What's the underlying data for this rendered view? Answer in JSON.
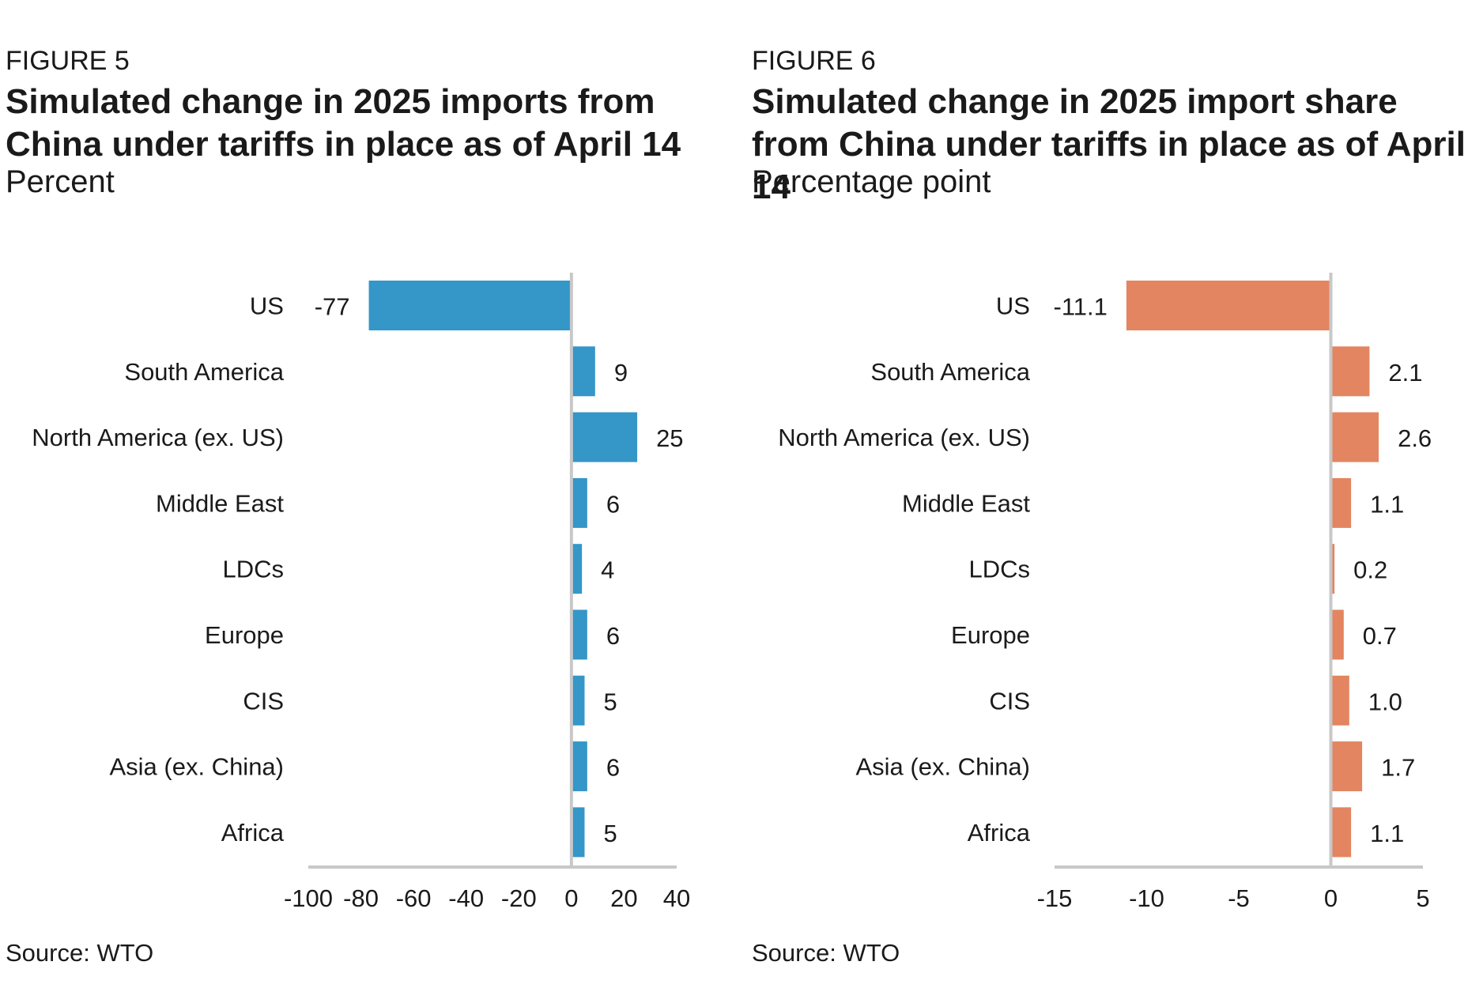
{
  "figures": [
    {
      "label": "FIGURE 5",
      "title": "Simulated change in 2025 imports from China under tariffs in place as of April 14",
      "unit": "Percent",
      "source": "Source: WTO"
    },
    {
      "label": "FIGURE 6",
      "title": "Simulated change in 2025 import share from China under tariffs in place as of April 14",
      "unit": "Percentage point",
      "source": "Source: WTO"
    }
  ],
  "chart_data": [
    {
      "type": "bar",
      "orientation": "horizontal",
      "title": "Simulated change in 2025 imports from China under tariffs in place as of April 14",
      "ylabel": "Percent",
      "categories": [
        "US",
        "South America",
        "North America (ex. US)",
        "Middle East",
        "LDCs",
        "Europe",
        "CIS",
        "Asia (ex. China)",
        "Africa"
      ],
      "values": [
        -77,
        9,
        25,
        6,
        4,
        6,
        5,
        6,
        5
      ],
      "value_labels": [
        "-77",
        "9",
        "25",
        "6",
        "4",
        "6",
        "5",
        "6",
        "5"
      ],
      "xlim": [
        -100,
        40
      ],
      "xticks": [
        -100,
        -80,
        -60,
        -40,
        -20,
        0,
        20,
        40
      ],
      "xtick_labels": [
        "-100",
        "-80",
        "-60",
        "-40",
        "-20",
        "0",
        "20",
        "40"
      ],
      "color": "#3596c8",
      "grid": false
    },
    {
      "type": "bar",
      "orientation": "horizontal",
      "title": "Simulated change in 2025 import share from China under tariffs in place as of April 14",
      "ylabel": "Percentage point",
      "categories": [
        "US",
        "South America",
        "North America (ex. US)",
        "Middle East",
        "LDCs",
        "Europe",
        "CIS",
        "Asia (ex. China)",
        "Africa"
      ],
      "values": [
        -11.1,
        2.1,
        2.6,
        1.1,
        0.2,
        0.7,
        1.0,
        1.7,
        1.1
      ],
      "value_labels": [
        "-11.1",
        "2.1",
        "2.6",
        "1.1",
        "0.2",
        "0.7",
        "1.0",
        "1.7",
        "1.1"
      ],
      "xlim": [
        -15,
        5
      ],
      "xticks": [
        -15,
        -10,
        -5,
        0,
        5
      ],
      "xtick_labels": [
        "-15",
        "-10",
        "-5",
        "0",
        "5"
      ],
      "color": "#e38560",
      "grid": false
    }
  ]
}
